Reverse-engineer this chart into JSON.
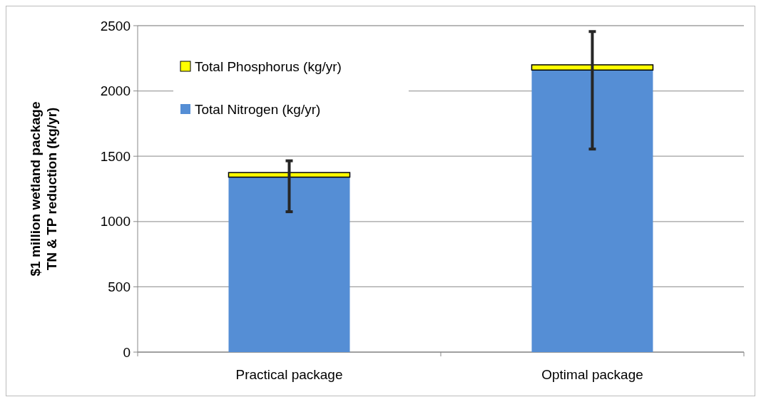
{
  "chart_data": {
    "type": "bar",
    "stacked": true,
    "ylabel": "$1 million wetland package\nTN & TP reduction (kg/yr)",
    "categories": [
      "Practical package",
      "Optimal package"
    ],
    "series": [
      {
        "name": "Total Nitrogen (kg/yr)",
        "color": "#558ed5",
        "values": [
          1340,
          2160
        ]
      },
      {
        "name": "Total Phosphorus (kg/yr)",
        "color": "#ffff00",
        "values": [
          35,
          40
        ],
        "errors": [
          [
            1075,
            1465
          ],
          [
            1555,
            2455
          ]
        ]
      }
    ],
    "ylim": [
      0,
      2500
    ],
    "yticks": [
      0,
      500,
      1000,
      1500,
      2000,
      2500
    ],
    "grid": "y",
    "legend": "top left"
  }
}
